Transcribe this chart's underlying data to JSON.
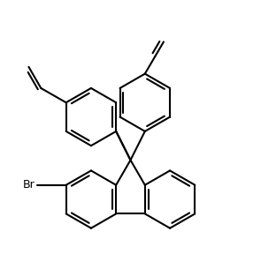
{
  "background": "#ffffff",
  "line_color": "#000000",
  "line_width": 1.5,
  "font_size": 9,
  "fig_width": 2.95,
  "fig_height": 2.88,
  "dpi": 100
}
